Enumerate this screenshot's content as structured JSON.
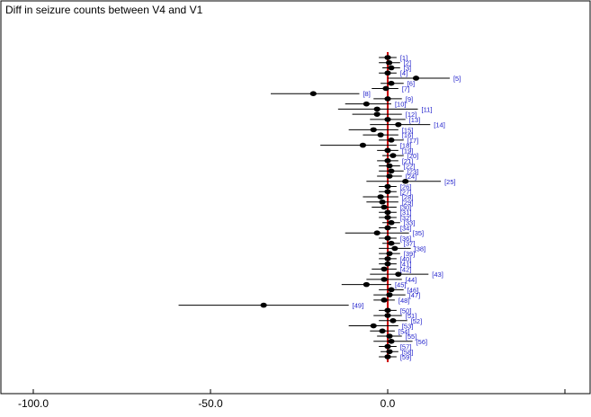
{
  "chart_data": {
    "type": "scatter",
    "subtype": "caterpillar-plot",
    "title": "Diff in seizure counts between V4 and V1",
    "xlabel": "",
    "ylabel": "",
    "xlim": [
      -100,
      50
    ],
    "xticks": [
      {
        "value": -100,
        "label": "-100.0"
      },
      {
        "value": -50,
        "label": "-50.0"
      },
      {
        "value": 0,
        "label": "0.0"
      },
      {
        "value": 50,
        "label": ""
      }
    ],
    "reference_line": {
      "x": 0,
      "color": "#cc0000"
    },
    "grid": false,
    "colors": {
      "point": "#000000",
      "interval": "#000000",
      "label": "#2222cc",
      "reference": "#cc0000"
    },
    "series": [
      {
        "label": "[1]",
        "mean": 0.0,
        "lo": -2.5,
        "hi": 2.5
      },
      {
        "label": "[2]",
        "mean": 0.4,
        "lo": -2.5,
        "hi": 3.5
      },
      {
        "label": "[3]",
        "mean": 1.0,
        "lo": -1.5,
        "hi": 3.5
      },
      {
        "label": "[4]",
        "mean": 0.0,
        "lo": -2.5,
        "hi": 2.5
      },
      {
        "label": "[5]",
        "mean": 8.0,
        "lo": 0.0,
        "hi": 17.5
      },
      {
        "label": "[6]",
        "mean": 1.0,
        "lo": -2.0,
        "hi": 4.5
      },
      {
        "label": "[7]",
        "mean": -0.5,
        "lo": -4.5,
        "hi": 3.0
      },
      {
        "label": "[8]",
        "mean": -21.0,
        "lo": -33.0,
        "hi": -8.0
      },
      {
        "label": "[9]",
        "mean": 0.0,
        "lo": -4.0,
        "hi": 4.0
      },
      {
        "label": "[10]",
        "mean": -6.0,
        "lo": -12.0,
        "hi": 1.0
      },
      {
        "label": "[11]",
        "mean": -3.0,
        "lo": -14.0,
        "hi": 8.5
      },
      {
        "label": "[12]",
        "mean": -3.0,
        "lo": -10.0,
        "hi": 4.0
      },
      {
        "label": "[13]",
        "mean": 0.0,
        "lo": -5.0,
        "hi": 5.0
      },
      {
        "label": "[14]",
        "mean": 3.0,
        "lo": -5.0,
        "hi": 12.0
      },
      {
        "label": "[15]",
        "mean": -4.0,
        "lo": -11.0,
        "hi": 3.0
      },
      {
        "label": "[16]",
        "mean": -2.0,
        "lo": -7.0,
        "hi": 3.0
      },
      {
        "label": "[17]",
        "mean": 1.0,
        "lo": -2.5,
        "hi": 4.5
      },
      {
        "label": "[18]",
        "mean": -7.0,
        "lo": -19.0,
        "hi": 2.5
      },
      {
        "label": "[19]",
        "mean": 0.0,
        "lo": -3.0,
        "hi": 3.0
      },
      {
        "label": "[20]",
        "mean": 1.5,
        "lo": -1.5,
        "hi": 4.5
      },
      {
        "label": "[21]",
        "mean": 0.0,
        "lo": -3.0,
        "hi": 3.0
      },
      {
        "label": "[22]",
        "mean": 0.5,
        "lo": -2.5,
        "hi": 3.5
      },
      {
        "label": "[23]",
        "mean": 1.0,
        "lo": -2.5,
        "hi": 4.5
      },
      {
        "label": "[24]",
        "mean": 0.5,
        "lo": -3.0,
        "hi": 4.0
      },
      {
        "label": "[25]",
        "mean": 5.0,
        "lo": -6.0,
        "hi": 15.0
      },
      {
        "label": "[26]",
        "mean": 0.0,
        "lo": -2.5,
        "hi": 2.5
      },
      {
        "label": "[27]",
        "mean": 0.0,
        "lo": -2.5,
        "hi": 2.5
      },
      {
        "label": "[28]",
        "mean": -2.0,
        "lo": -7.0,
        "hi": 3.0
      },
      {
        "label": "[29]",
        "mean": -1.5,
        "lo": -6.0,
        "hi": 3.0
      },
      {
        "label": "[30]",
        "mean": -1.0,
        "lo": -4.5,
        "hi": 2.5
      },
      {
        "label": "[31]",
        "mean": 0.0,
        "lo": -2.5,
        "hi": 2.5
      },
      {
        "label": "[32]",
        "mean": 0.0,
        "lo": -2.5,
        "hi": 2.5
      },
      {
        "label": "[33]",
        "mean": 1.0,
        "lo": -1.5,
        "hi": 3.5
      },
      {
        "label": "[34]",
        "mean": 0.0,
        "lo": -2.5,
        "hi": 2.5
      },
      {
        "label": "[35]",
        "mean": -3.0,
        "lo": -12.0,
        "hi": 6.0
      },
      {
        "label": "[36]",
        "mean": 0.0,
        "lo": -2.5,
        "hi": 2.5
      },
      {
        "label": "[37]",
        "mean": 1.0,
        "lo": -1.5,
        "hi": 3.5
      },
      {
        "label": "[38]",
        "mean": 2.0,
        "lo": -2.5,
        "hi": 6.5
      },
      {
        "label": "[39]",
        "mean": 0.5,
        "lo": -2.5,
        "hi": 3.5
      },
      {
        "label": "[40]",
        "mean": 0.0,
        "lo": -2.5,
        "hi": 2.5
      },
      {
        "label": "[41]",
        "mean": 0.0,
        "lo": -2.5,
        "hi": 2.5
      },
      {
        "label": "[42]",
        "mean": -1.0,
        "lo": -4.5,
        "hi": 2.5
      },
      {
        "label": "[43]",
        "mean": 3.0,
        "lo": -5.0,
        "hi": 11.5
      },
      {
        "label": "[44]",
        "mean": -1.0,
        "lo": -6.0,
        "hi": 4.0
      },
      {
        "label": "[45]",
        "mean": -6.0,
        "lo": -13.0,
        "hi": 1.0
      },
      {
        "label": "[46]",
        "mean": 1.0,
        "lo": -2.5,
        "hi": 4.5
      },
      {
        "label": "[47]",
        "mean": 0.5,
        "lo": -4.0,
        "hi": 5.0
      },
      {
        "label": "[48]",
        "mean": -1.0,
        "lo": -4.0,
        "hi": 2.0
      },
      {
        "label": "[49]",
        "mean": -35.0,
        "lo": -59.0,
        "hi": -11.0
      },
      {
        "label": "[50]",
        "mean": 0.0,
        "lo": -2.5,
        "hi": 2.5
      },
      {
        "label": "[51]",
        "mean": 0.0,
        "lo": -4.0,
        "hi": 4.0
      },
      {
        "label": "[52]",
        "mean": 1.5,
        "lo": -2.5,
        "hi": 5.5
      },
      {
        "label": "[53]",
        "mean": -4.0,
        "lo": -11.0,
        "hi": 3.0
      },
      {
        "label": "[54]",
        "mean": -1.5,
        "lo": -5.0,
        "hi": 2.0
      },
      {
        "label": "[55]",
        "mean": 0.5,
        "lo": -3.0,
        "hi": 4.0
      },
      {
        "label": "[56]",
        "mean": 1.0,
        "lo": -4.0,
        "hi": 7.0
      },
      {
        "label": "[57]",
        "mean": 0.0,
        "lo": -2.5,
        "hi": 2.5
      },
      {
        "label": "[58]",
        "mean": 0.5,
        "lo": -2.0,
        "hi": 3.0
      },
      {
        "label": "[59]",
        "mean": 0.0,
        "lo": -2.5,
        "hi": 2.5
      }
    ]
  }
}
